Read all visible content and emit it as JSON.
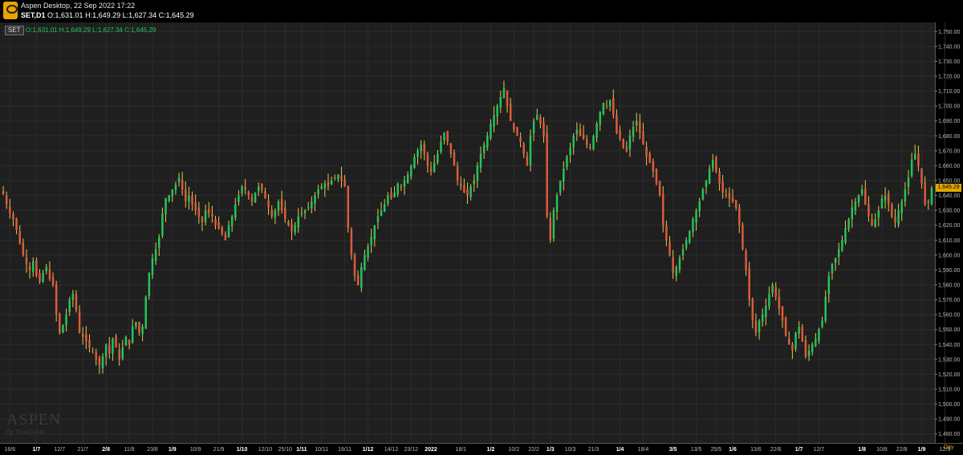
{
  "header": {
    "app_title": "Aspen Desktop, 22 Sep 2022 17:22",
    "symbol_tf": "SET,D1",
    "ohlc": "O:1,631.01 H:1,649.29 L:1,627.34 C:1,645.29"
  },
  "legend": {
    "symbol": "SET",
    "ohlc": "O:1,631.01 H:1,649.29 L:1,627.34 C:1,645.29"
  },
  "watermark": {
    "brand": "ASPEN",
    "sub": "by ThaiQuest"
  },
  "last_price_label": "1,645.29",
  "period_label": "Day",
  "colors": {
    "up": "#22c55e",
    "down": "#e05a3d",
    "background": "#1f1f1f",
    "grid": "#2c2c2c",
    "last_price": "#e0a800"
  },
  "chart_data": {
    "type": "candlestick",
    "title": "",
    "symbol": "SET",
    "timeframe": "D1",
    "ylim": [
      1475,
      1755
    ],
    "y_ticks": [
      "1,480.00",
      "1,490.00",
      "1,500.00",
      "1,510.00",
      "1,520.00",
      "1,530.00",
      "1,540.00",
      "1,550.00",
      "1,560.00",
      "1,570.00",
      "1,580.00",
      "1,590.00",
      "1,600.00",
      "1,610.00",
      "1,620.00",
      "1,630.00",
      "1,640.00",
      "1,650.00",
      "1,660.00",
      "1,670.00",
      "1,680.00",
      "1,690.00",
      "1,700.00",
      "1,710.00",
      "1,720.00",
      "1,730.00",
      "1,740.00",
      "1,750.00"
    ],
    "y_tick_values": [
      1480,
      1490,
      1500,
      1510,
      1520,
      1530,
      1540,
      1550,
      1560,
      1570,
      1580,
      1590,
      1600,
      1610,
      1620,
      1630,
      1640,
      1650,
      1660,
      1670,
      1680,
      1690,
      1700,
      1710,
      1720,
      1730,
      1740,
      1750
    ],
    "x_ticks": [
      {
        "label": "16/6",
        "bold": false,
        "index": 2
      },
      {
        "label": "1/7",
        "bold": true,
        "index": 10
      },
      {
        "label": "12/7",
        "bold": false,
        "index": 17
      },
      {
        "label": "21/7",
        "bold": false,
        "index": 24
      },
      {
        "label": "2/8",
        "bold": true,
        "index": 31
      },
      {
        "label": "11/8",
        "bold": false,
        "index": 38
      },
      {
        "label": "23/8",
        "bold": false,
        "index": 45
      },
      {
        "label": "1/9",
        "bold": true,
        "index": 51
      },
      {
        "label": "10/9",
        "bold": false,
        "index": 58
      },
      {
        "label": "21/9",
        "bold": false,
        "index": 65
      },
      {
        "label": "1/10",
        "bold": true,
        "index": 72
      },
      {
        "label": "12/10",
        "bold": false,
        "index": 79
      },
      {
        "label": "25/10",
        "bold": false,
        "index": 85
      },
      {
        "label": "1/11",
        "bold": true,
        "index": 90
      },
      {
        "label": "10/11",
        "bold": false,
        "index": 96
      },
      {
        "label": "19/11",
        "bold": false,
        "index": 103
      },
      {
        "label": "1/12",
        "bold": true,
        "index": 110
      },
      {
        "label": "14/12",
        "bold": false,
        "index": 117
      },
      {
        "label": "23/12",
        "bold": false,
        "index": 123
      },
      {
        "label": "2022",
        "bold": true,
        "index": 129
      },
      {
        "label": "18/1",
        "bold": false,
        "index": 138
      },
      {
        "label": "1/2",
        "bold": true,
        "index": 147
      },
      {
        "label": "10/2",
        "bold": false,
        "index": 154
      },
      {
        "label": "22/2",
        "bold": false,
        "index": 160
      },
      {
        "label": "1/3",
        "bold": true,
        "index": 165
      },
      {
        "label": "10/3",
        "bold": false,
        "index": 171
      },
      {
        "label": "21/3",
        "bold": false,
        "index": 178
      },
      {
        "label": "1/4",
        "bold": true,
        "index": 186
      },
      {
        "label": "18/4",
        "bold": false,
        "index": 193
      },
      {
        "label": "3/5",
        "bold": true,
        "index": 202
      },
      {
        "label": "13/5",
        "bold": false,
        "index": 209
      },
      {
        "label": "25/5",
        "bold": false,
        "index": 215
      },
      {
        "label": "1/6",
        "bold": true,
        "index": 220
      },
      {
        "label": "13/6",
        "bold": false,
        "index": 227
      },
      {
        "label": "22/6",
        "bold": false,
        "index": 233
      },
      {
        "label": "1/7",
        "bold": true,
        "index": 240
      },
      {
        "label": "12/7",
        "bold": false,
        "index": 246
      },
      {
        "label": "1/8",
        "bold": true,
        "index": 259
      },
      {
        "label": "10/8",
        "bold": false,
        "index": 265
      },
      {
        "label": "22/8",
        "bold": false,
        "index": 271
      },
      {
        "label": "1/9",
        "bold": true,
        "index": 277
      },
      {
        "label": "12/9",
        "bold": false,
        "index": 284
      }
    ],
    "closes": [
      1641,
      1634,
      1628,
      1624,
      1617,
      1608,
      1600,
      1594,
      1590,
      1596,
      1586,
      1582,
      1588,
      1592,
      1584,
      1580,
      1560,
      1548,
      1553,
      1560,
      1570,
      1574,
      1563,
      1548,
      1545,
      1542,
      1538,
      1536,
      1530,
      1526,
      1532,
      1540,
      1534,
      1544,
      1538,
      1530,
      1538,
      1545,
      1540,
      1552,
      1555,
      1548,
      1552,
      1572,
      1588,
      1598,
      1604,
      1612,
      1628,
      1638,
      1640,
      1644,
      1647,
      1652,
      1644,
      1636,
      1640,
      1634,
      1630,
      1626,
      1622,
      1630,
      1628,
      1626,
      1620,
      1618,
      1614,
      1610,
      1620,
      1626,
      1634,
      1640,
      1646,
      1644,
      1640,
      1636,
      1642,
      1646,
      1644,
      1638,
      1632,
      1626,
      1630,
      1636,
      1630,
      1624,
      1620,
      1616,
      1620,
      1626,
      1628,
      1630,
      1632,
      1636,
      1640,
      1644,
      1646,
      1648,
      1646,
      1650,
      1652,
      1654,
      1650,
      1646,
      1618,
      1600,
      1586,
      1580,
      1592,
      1600,
      1606,
      1612,
      1620,
      1626,
      1630,
      1634,
      1640,
      1638,
      1642,
      1648,
      1646,
      1650,
      1654,
      1660,
      1666,
      1670,
      1674,
      1668,
      1660,
      1656,
      1662,
      1668,
      1676,
      1682,
      1676,
      1668,
      1660,
      1650,
      1646,
      1642,
      1640,
      1646,
      1650,
      1660,
      1668,
      1674,
      1680,
      1688,
      1694,
      1700,
      1706,
      1712,
      1700,
      1690,
      1684,
      1680,
      1676,
      1668,
      1660,
      1680,
      1690,
      1694,
      1688,
      1680,
      1626,
      1610,
      1630,
      1640,
      1650,
      1658,
      1666,
      1672,
      1680,
      1684,
      1680,
      1678,
      1674,
      1672,
      1680,
      1688,
      1696,
      1702,
      1700,
      1704,
      1694,
      1682,
      1678,
      1672,
      1670,
      1680,
      1686,
      1690,
      1682,
      1674,
      1666,
      1662,
      1656,
      1648,
      1640,
      1620,
      1610,
      1600,
      1588,
      1592,
      1598,
      1604,
      1610,
      1616,
      1624,
      1630,
      1636,
      1644,
      1650,
      1658,
      1664,
      1656,
      1648,
      1642,
      1640,
      1638,
      1636,
      1632,
      1620,
      1604,
      1590,
      1570,
      1556,
      1548,
      1556,
      1560,
      1566,
      1574,
      1580,
      1572,
      1564,
      1556,
      1546,
      1540,
      1536,
      1548,
      1552,
      1542,
      1532,
      1536,
      1540,
      1544,
      1550,
      1556,
      1572,
      1586,
      1594,
      1598,
      1604,
      1610,
      1618,
      1624,
      1632,
      1636,
      1640,
      1644,
      1634,
      1626,
      1620,
      1624,
      1630,
      1638,
      1640,
      1634,
      1626,
      1622,
      1630,
      1636,
      1644,
      1652,
      1664,
      1668,
      1660,
      1648,
      1634,
      1636,
      1645
    ]
  }
}
